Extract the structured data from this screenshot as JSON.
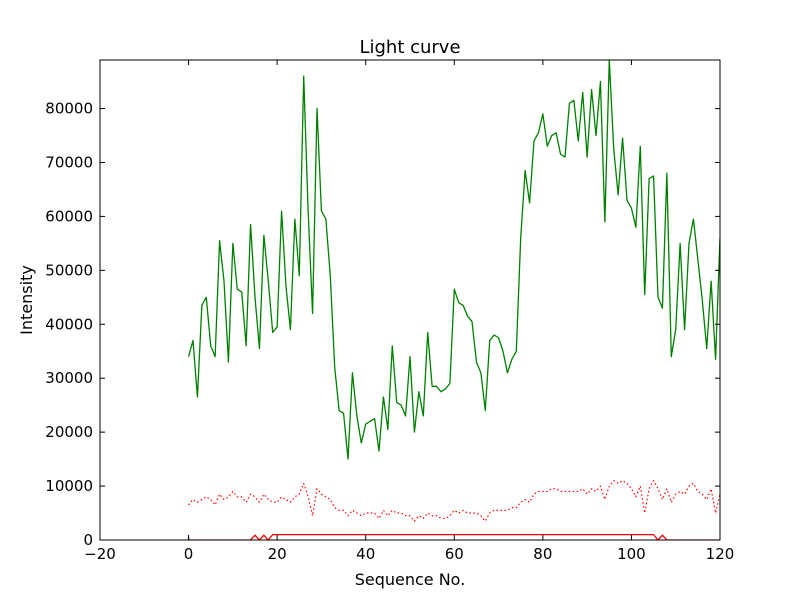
{
  "chart_data": {
    "type": "line",
    "title": "Light curve",
    "xlabel": "Sequence No.",
    "ylabel": "Intensity",
    "xlim": [
      -20,
      120
    ],
    "ylim": [
      0,
      89000
    ],
    "xticks": [
      -20,
      0,
      20,
      40,
      60,
      80,
      100,
      120
    ],
    "xtick_labels": [
      "−20",
      "0",
      "20",
      "40",
      "60",
      "80",
      "100",
      "120"
    ],
    "yticks": [
      0,
      10000,
      20000,
      30000,
      40000,
      50000,
      60000,
      70000,
      80000
    ],
    "ytick_labels": [
      "0",
      "10000",
      "20000",
      "30000",
      "40000",
      "50000",
      "60000",
      "70000",
      "80000"
    ],
    "grid": false,
    "series": [
      {
        "color": "#008000",
        "style": "solid",
        "x": [
          0,
          1,
          2,
          3,
          4,
          5,
          6,
          7,
          8,
          9,
          10,
          11,
          12,
          13,
          14,
          15,
          16,
          17,
          18,
          19,
          20,
          21,
          22,
          23,
          24,
          25,
          26,
          27,
          28,
          29,
          30,
          31,
          32,
          33,
          34,
          35,
          36,
          37,
          38,
          39,
          40,
          41,
          42,
          43,
          44,
          45,
          46,
          47,
          48,
          49,
          50,
          51,
          52,
          53,
          54,
          55,
          56,
          57,
          58,
          59,
          60,
          61,
          62,
          63,
          64,
          65,
          66,
          67,
          68,
          69,
          70,
          71,
          72,
          73,
          74,
          75,
          76,
          77,
          78,
          79,
          80,
          81,
          82,
          83,
          84,
          85,
          86,
          87,
          88,
          89,
          90,
          91,
          92,
          93,
          94,
          95,
          96,
          97,
          98,
          99,
          100,
          101,
          102,
          103,
          104,
          105,
          106,
          107,
          108,
          109,
          110,
          111,
          112,
          113,
          114,
          115,
          116,
          117,
          118,
          119,
          120
        ],
        "y": [
          34000,
          37000,
          26500,
          43500,
          45000,
          36000,
          34000,
          55500,
          48000,
          33000,
          55000,
          46500,
          46000,
          36000,
          58500,
          45000,
          35500,
          56500,
          48000,
          38500,
          39500,
          61000,
          47000,
          39000,
          59500,
          49000,
          86000,
          61000,
          42000,
          80000,
          61000,
          59500,
          49000,
          32000,
          24000,
          23500,
          15000,
          31000,
          23000,
          18000,
          21500,
          22000,
          22500,
          16500,
          26500,
          20500,
          36000,
          25500,
          25000,
          23000,
          34000,
          20000,
          27500,
          23000,
          38500,
          28500,
          28500,
          27500,
          28000,
          29000,
          46500,
          44000,
          43500,
          41500,
          40500,
          33000,
          31000,
          24000,
          37000,
          38000,
          37500,
          35000,
          31000,
          33500,
          35000,
          56000,
          68500,
          62500,
          74000,
          75500,
          79000,
          73000,
          75000,
          75500,
          71500,
          71000,
          81000,
          81500,
          74000,
          83000,
          71000,
          83500,
          75000,
          85000,
          59000,
          89000,
          72500,
          64000,
          74500,
          63000,
          61500,
          58000,
          73000,
          45500,
          67000,
          67500,
          45000,
          43000,
          68000,
          34000,
          39000,
          55000,
          39000,
          55000,
          59500,
          52000,
          44500,
          35500,
          48000,
          33500,
          56000
        ]
      },
      {
        "color": "#ff0000",
        "style": "dotted",
        "x": [
          0,
          1,
          2,
          3,
          4,
          5,
          6,
          7,
          8,
          9,
          10,
          11,
          12,
          13,
          14,
          15,
          16,
          17,
          18,
          19,
          20,
          21,
          22,
          23,
          24,
          25,
          26,
          27,
          28,
          29,
          30,
          31,
          32,
          33,
          34,
          35,
          36,
          37,
          38,
          39,
          40,
          41,
          42,
          43,
          44,
          45,
          46,
          47,
          48,
          49,
          50,
          51,
          52,
          53,
          54,
          55,
          56,
          57,
          58,
          59,
          60,
          61,
          62,
          63,
          64,
          65,
          66,
          67,
          68,
          69,
          70,
          71,
          72,
          73,
          74,
          75,
          76,
          77,
          78,
          79,
          80,
          81,
          82,
          83,
          84,
          85,
          86,
          87,
          88,
          89,
          90,
          91,
          92,
          93,
          94,
          95,
          96,
          97,
          98,
          99,
          100,
          101,
          102,
          103,
          104,
          105,
          106,
          107,
          108,
          109,
          110,
          111,
          112,
          113,
          114,
          115,
          116,
          117,
          118,
          119,
          120
        ],
        "y": [
          6500,
          7500,
          7000,
          7500,
          8000,
          7500,
          6500,
          8500,
          7500,
          8000,
          9000,
          8000,
          8000,
          7000,
          8500,
          8000,
          7000,
          8500,
          7500,
          7000,
          7000,
          8000,
          7500,
          7000,
          8000,
          8500,
          10500,
          8000,
          4500,
          9500,
          8500,
          8000,
          7500,
          6000,
          5500,
          5500,
          4500,
          5500,
          5000,
          4500,
          5000,
          5000,
          5000,
          4000,
          5500,
          4500,
          5500,
          5000,
          5000,
          4500,
          4500,
          3500,
          4500,
          4000,
          5000,
          4500,
          4500,
          4000,
          4000,
          4500,
          5500,
          5000,
          5500,
          5000,
          5000,
          5000,
          4500,
          3500,
          5000,
          5500,
          5500,
          5500,
          5500,
          6000,
          6000,
          7000,
          7500,
          7000,
          8500,
          9000,
          9000,
          9000,
          9500,
          9500,
          9000,
          9000,
          9000,
          9000,
          9000,
          9500,
          8500,
          9500,
          9000,
          10000,
          7500,
          10000,
          11000,
          10500,
          11000,
          10500,
          9500,
          8000,
          10000,
          5000,
          9500,
          11000,
          9500,
          7500,
          9500,
          7000,
          8500,
          9000,
          8500,
          10000,
          10500,
          9000,
          8500,
          7500,
          9500,
          5000,
          8500
        ]
      },
      {
        "color": "#ff0000",
        "style": "solid",
        "x": [
          0,
          14,
          15,
          16,
          17,
          18,
          19,
          105,
          106,
          107,
          108,
          120
        ],
        "y": [
          0,
          0,
          900,
          0,
          900,
          0,
          1000,
          1000,
          0,
          900,
          0,
          0
        ]
      },
      {
        "color": "#0000ff",
        "style": "solid",
        "x": [
          0,
          0
        ],
        "y": [
          0,
          600
        ]
      }
    ]
  }
}
